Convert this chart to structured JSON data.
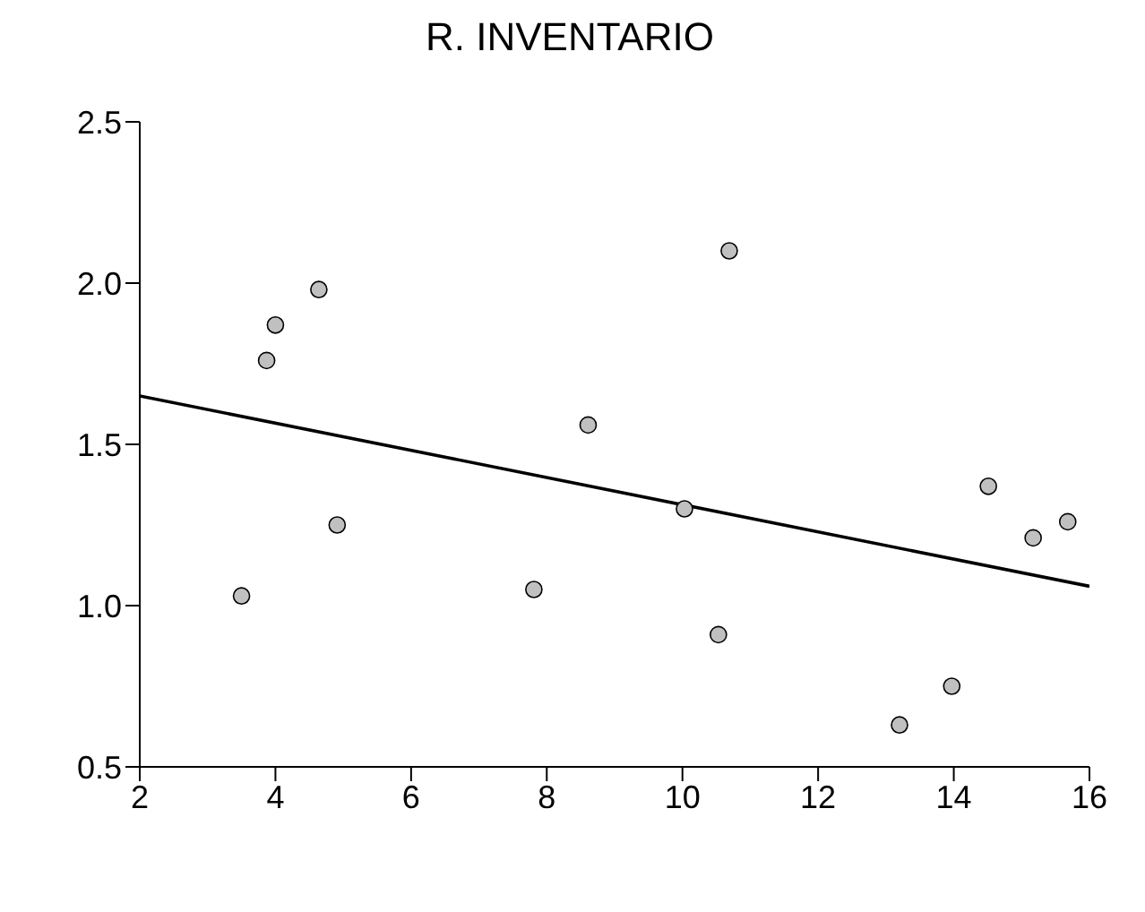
{
  "chart_data": {
    "type": "scatter",
    "title": "R. INVENTARIO",
    "xlim": [
      2,
      16
    ],
    "xticks": [
      2,
      4,
      6,
      8,
      10,
      12,
      14,
      16
    ],
    "ylim": [
      0.5,
      2.5
    ],
    "yticks": [
      0.5,
      {
        "value": 1,
        "label": "1.0"
      },
      1.5,
      {
        "value": 2,
        "label": "2.0"
      },
      2.5
    ],
    "grid": false,
    "legend": false,
    "marker": "circle",
    "series": [
      {
        "type": "scatter",
        "color": "#c0c0c0",
        "x": [
          3.5,
          3.87,
          4.0,
          4.64,
          4.91,
          7.81,
          8.61,
          10.03,
          10.53,
          10.69,
          13.2,
          13.97,
          14.51,
          15.17,
          15.68
        ],
        "values": [
          1.03,
          1.76,
          1.87,
          1.98,
          1.25,
          1.05,
          1.56,
          1.3,
          0.91,
          2.1,
          0.63,
          0.75,
          1.37,
          1.21,
          1.26
        ]
      },
      {
        "type": "line",
        "color": "#000000",
        "x": [
          2,
          16
        ],
        "values": [
          1.65,
          1.06
        ],
        "marker": "none",
        "line_style": "solid"
      }
    ]
  }
}
